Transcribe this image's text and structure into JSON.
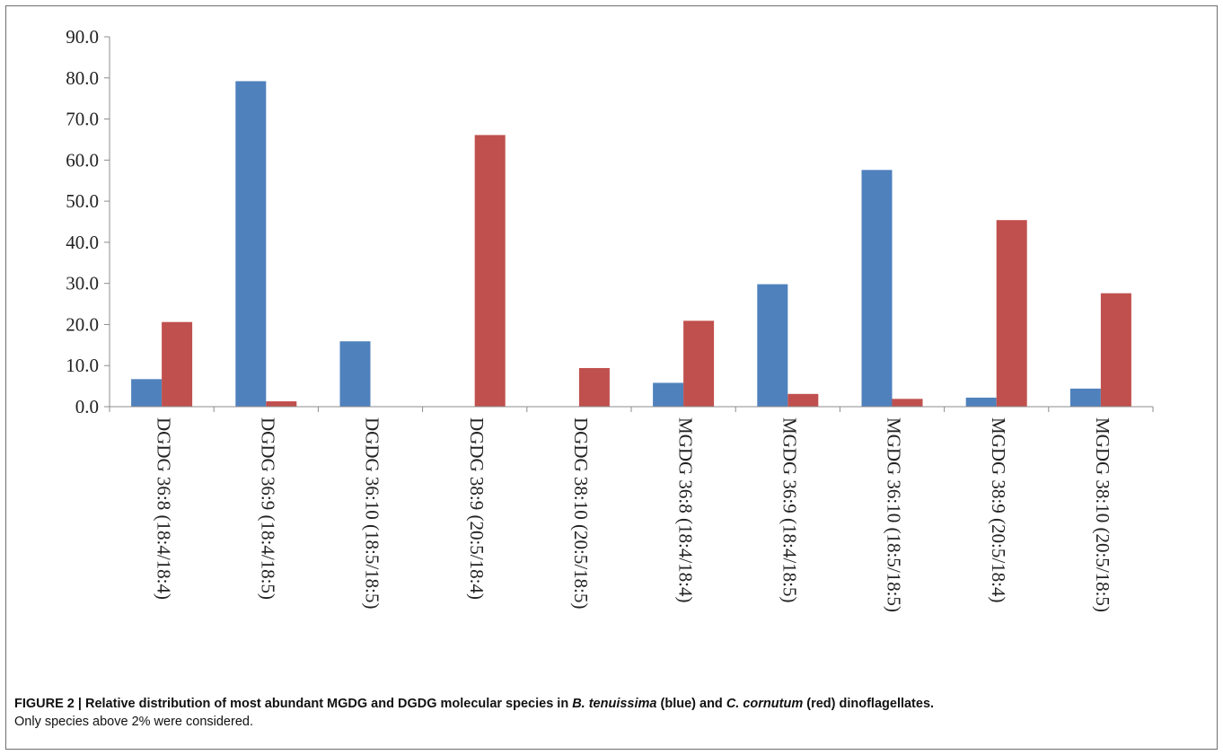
{
  "caption": {
    "lead": "FIGURE 2 | Relative distribution of most abundant MGDG and DGDG molecular species in ",
    "species1": "B. tenuissima",
    "mid1": " (blue) and ",
    "species2": "C. cornutum",
    "mid2": " (red) dinoflagellates.",
    "note": "Only species above 2% were considered."
  },
  "chart_data": {
    "type": "bar",
    "title": "",
    "xlabel": "",
    "ylabel": "",
    "ylim": [
      0,
      90
    ],
    "yticks": [
      "0.0",
      "10.0",
      "20.0",
      "30.0",
      "40.0",
      "50.0",
      "60.0",
      "70.0",
      "80.0",
      "90.0"
    ],
    "legend": "none",
    "grid": false,
    "categories": [
      "DGDG 36:8 (18:4/18:4)",
      "DGDG 36:9 (18:4/18:5)",
      "DGDG 36:10 (18:5/18:5)",
      "DGDG 38:9 (20:5/18:4)",
      "DGDG 38:10 (20:5/18:5)",
      "MGDG 36:8 (18:4/18:4)",
      "MGDG 36:9 (18:4/18:5)",
      "MGDG 36:10 (18:5/18:5)",
      "MGDG 38:9 (20:5/18:4)",
      "MGDG 38:10 (20:5/18:5)"
    ],
    "series": [
      {
        "color": "#4f81bd",
        "values": [
          6.7,
          79.2,
          15.9,
          0.0,
          0.0,
          5.8,
          29.8,
          57.6,
          2.2,
          4.4
        ]
      },
      {
        "color": "#c0504d",
        "values": [
          20.6,
          1.3,
          0.0,
          66.1,
          9.4,
          20.9,
          3.1,
          1.9,
          45.4,
          27.6
        ]
      }
    ]
  }
}
